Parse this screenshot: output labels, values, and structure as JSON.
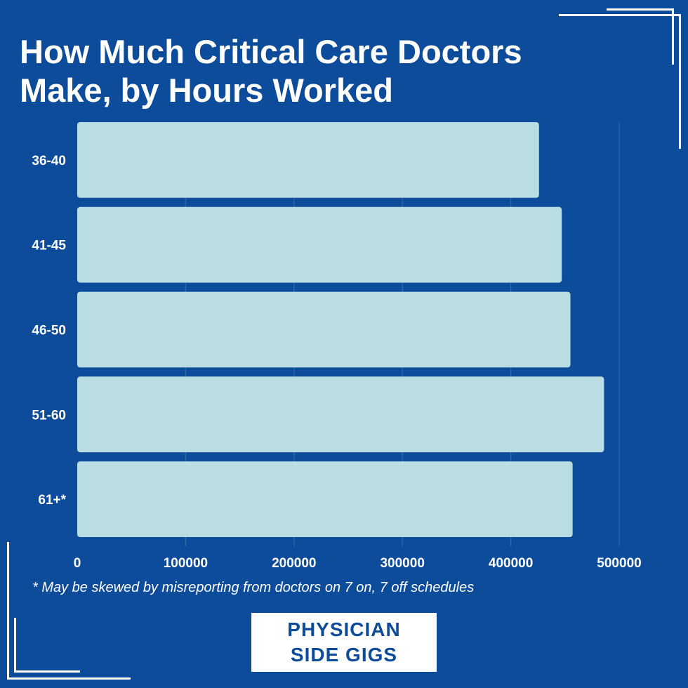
{
  "colors": {
    "background": "#0d4c9a",
    "bar": "#b9dde3",
    "grid": "#2a64aa",
    "text": "#ffffff",
    "logo_bg": "#ffffff",
    "logo_text": "#0d4c9a"
  },
  "header": {
    "title_line1": "How Much Critical Care Doctors",
    "title_line2": "Make, by Hours Worked"
  },
  "chart_data": {
    "type": "bar",
    "orientation": "horizontal",
    "title": "How Much Critical Care Doctors Make, by Hours Worked",
    "xlabel": "",
    "ylabel": "",
    "categories": [
      "36-40",
      "41-45",
      "46-50",
      "51-60",
      "61+*"
    ],
    "values": [
      426000,
      447000,
      455000,
      486000,
      457000
    ],
    "xlim": [
      0,
      500000
    ],
    "xticks": [
      "0",
      "100000",
      "200000",
      "300000",
      "400000",
      "500000"
    ],
    "grid": true,
    "legend": "none"
  },
  "footnote": "* May be skewed by misreporting from doctors on 7 on, 7 off schedules",
  "logo": {
    "line1": "PHYSICIAN",
    "line2": "SIDE GIGS"
  }
}
